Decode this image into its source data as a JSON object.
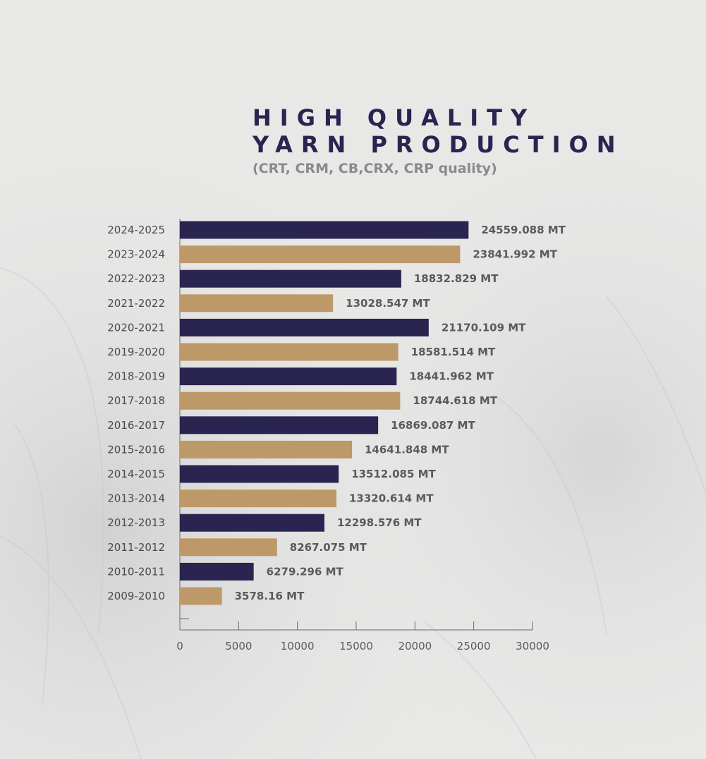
{
  "title_line1": "HIGH QUALITY",
  "title_line2": "YARN PRODUCTION",
  "subtitle": "(CRT, CRM, CB,CRX, CRP quality)",
  "colors": {
    "navy": "#2a2450",
    "tan": "#bd9868",
    "axis": "#6a6a6c",
    "background": "#e7e7e6"
  },
  "chart_data": {
    "type": "bar",
    "orientation": "horizontal",
    "categories": [
      "2024-2025",
      "2023-2024",
      "2022-2023",
      "2021-2022",
      "2020-2021",
      "2019-2020",
      "2018-2019",
      "2017-2018",
      "2016-2017",
      "2015-2016",
      "2014-2015",
      "2013-2014",
      "2012-2013",
      "2011-2012",
      "2010-2011",
      "2009-2010"
    ],
    "values": [
      24559.088,
      23841.992,
      18832.829,
      13028.547,
      21170.109,
      18581.514,
      18441.962,
      18744.618,
      16869.087,
      14641.848,
      13512.085,
      13320.614,
      12298.576,
      8267.075,
      6279.296,
      3578.16
    ],
    "value_labels": [
      "24559.088 MT",
      "23841.992 MT",
      "18832.829 MT",
      "13028.547 MT",
      "21170.109 MT",
      "18581.514 MT",
      "18441.962 MT",
      "18744.618 MT",
      "16869.087 MT",
      "14641.848 MT",
      "13512.085 MT",
      "13320.614 MT",
      "12298.576 MT",
      "8267.075 MT",
      "6279.296 MT",
      "3578.16 MT"
    ],
    "bar_colors": [
      "navy",
      "tan",
      "navy",
      "tan",
      "navy",
      "tan",
      "navy",
      "tan",
      "navy",
      "tan",
      "navy",
      "tan",
      "navy",
      "tan",
      "navy",
      "tan"
    ],
    "xlim": [
      0,
      30000
    ],
    "xticks": [
      0,
      5000,
      10000,
      15000,
      20000,
      25000,
      30000
    ],
    "xtick_labels": [
      "0",
      "5000",
      "10000",
      "15000",
      "20000",
      "25000",
      "30000"
    ],
    "grid": false,
    "legend": "none",
    "title": "HIGH QUALITY YARN PRODUCTION",
    "subtitle": "(CRT, CRM, CB,CRX, CRP quality)"
  }
}
